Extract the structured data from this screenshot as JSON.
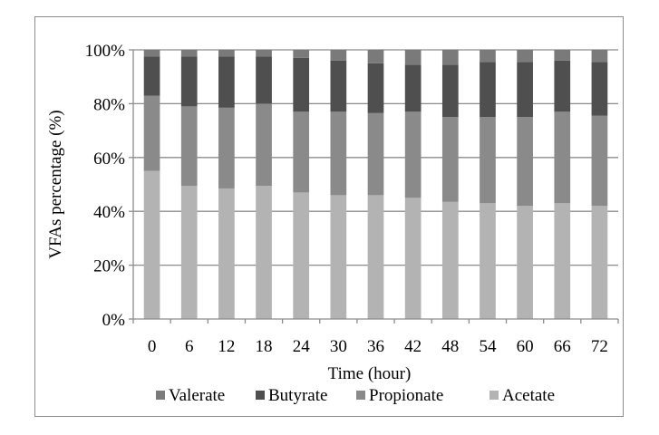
{
  "colors": {
    "background": "#ffffff",
    "frame": "#8c8c8c",
    "gridline": "#8c8c8c",
    "axis": "#8c8c8c"
  },
  "chart_data": {
    "type": "bar",
    "stacked": true,
    "percent_stacked": true,
    "xlabel": "Time (hour)",
    "ylabel": "VFAs percentage (%)",
    "categories": [
      "0",
      "6",
      "12",
      "18",
      "24",
      "30",
      "36",
      "42",
      "48",
      "54",
      "60",
      "66",
      "72"
    ],
    "ylim": [
      0,
      100
    ],
    "yticks": [
      "0%",
      "20%",
      "40%",
      "60%",
      "80%",
      "100%"
    ],
    "grid": true,
    "legend_position": "bottom",
    "series": [
      {
        "name": "Acetate",
        "color": "#b3b3b3",
        "values": [
          55,
          49.5,
          48.5,
          49.5,
          47,
          46,
          46,
          45,
          43.5,
          43,
          42,
          43,
          42
        ]
      },
      {
        "name": "Propionate",
        "color": "#8a8a8a",
        "values": [
          28,
          29.5,
          30,
          30.5,
          30,
          31,
          30.5,
          32,
          31.5,
          32,
          33,
          34,
          33.5
        ]
      },
      {
        "name": "Butyrate",
        "color": "#4f4f4f",
        "values": [
          14.5,
          18.5,
          19,
          17.5,
          20,
          19,
          18.5,
          17.5,
          19.5,
          20.5,
          20.5,
          19,
          20
        ]
      },
      {
        "name": "Valerate",
        "color": "#7a7a7a",
        "values": [
          2.5,
          2.5,
          2.5,
          2.5,
          3,
          4,
          5,
          5.5,
          5.5,
          4.5,
          4.5,
          4,
          4.5
        ]
      }
    ],
    "legend_order": [
      "Valerate",
      "Butyrate",
      "Propionate",
      "Acetate"
    ]
  }
}
